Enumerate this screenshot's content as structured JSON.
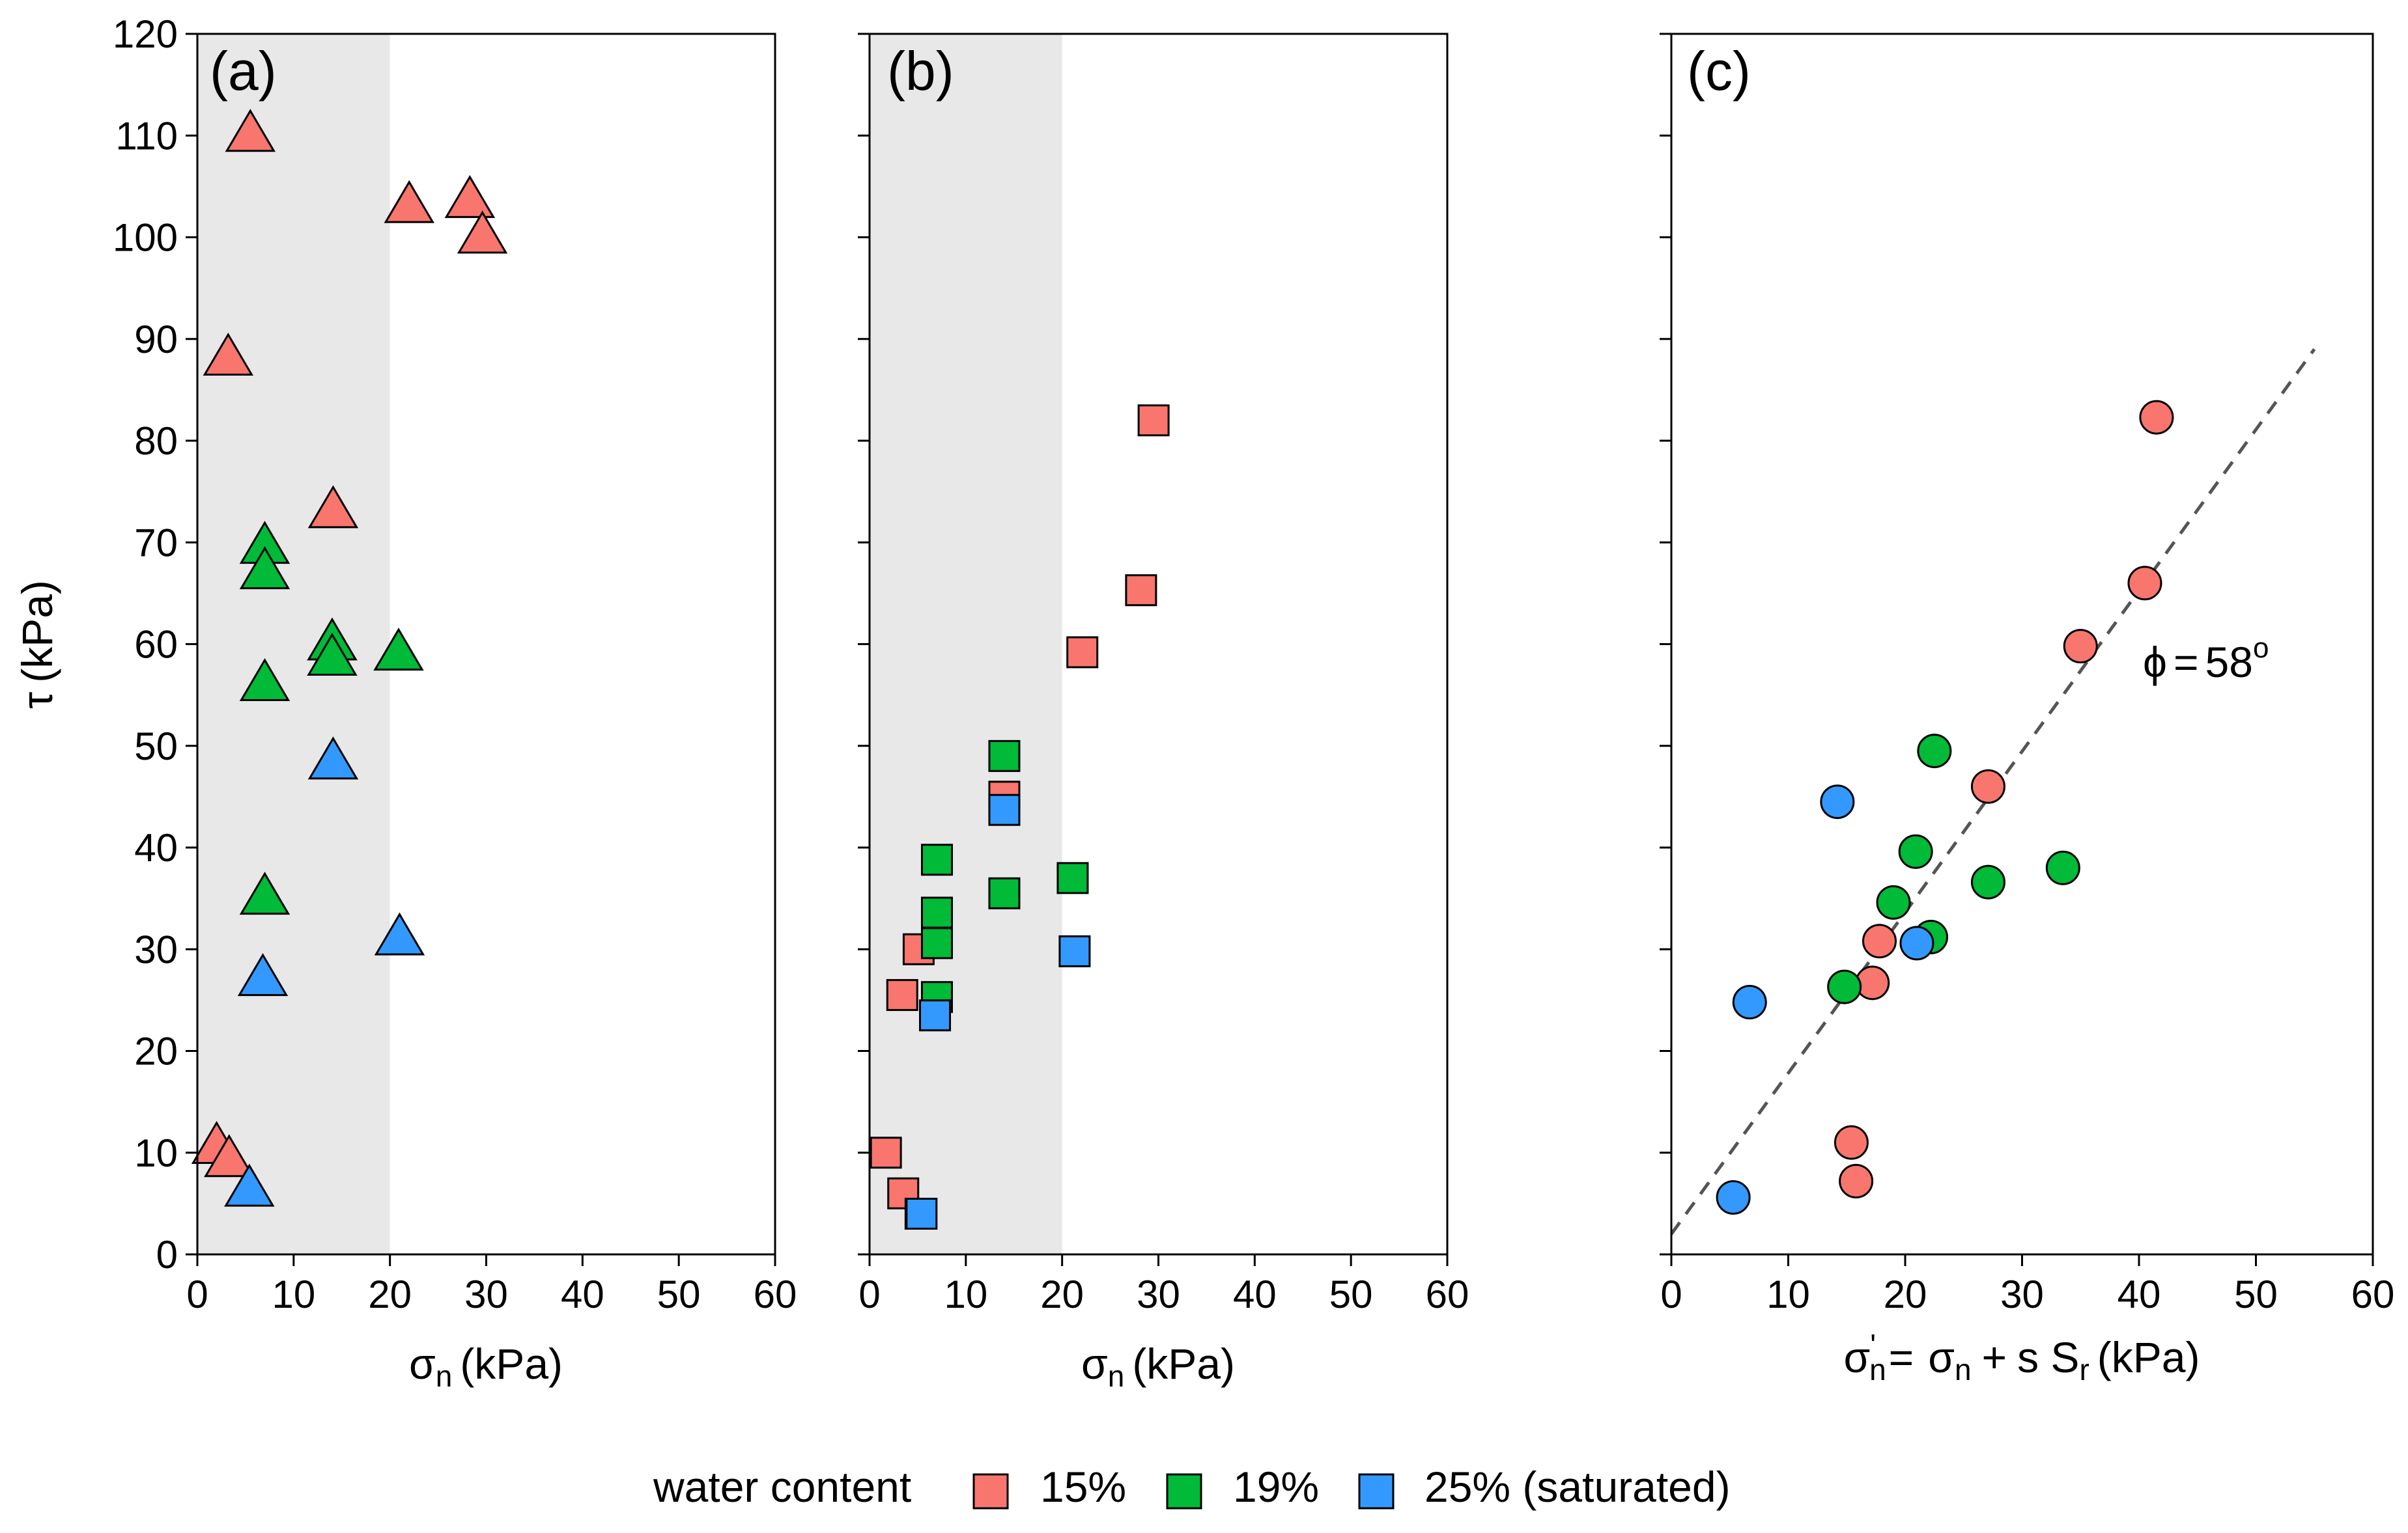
{
  "colors": {
    "w15": "#F8766D",
    "w19": "#00BA38",
    "w25": "#3399FF",
    "shade": "#E8E8E8",
    "fit_line": "#555555"
  },
  "legend": {
    "title": "water content",
    "entries": [
      {
        "key": "w15",
        "label": "15%"
      },
      {
        "key": "w19",
        "label": "19%"
      },
      {
        "key": "w25",
        "label": "25% (saturated)"
      }
    ]
  },
  "y_axis": {
    "sym": "τ",
    "unit": "(kPa)",
    "ticks": [
      "0",
      "10",
      "20",
      "30",
      "40",
      "50",
      "60",
      "70",
      "80",
      "90",
      "100",
      "110",
      "120"
    ]
  },
  "chart_data": [
    {
      "panel": "(a)",
      "type": "scatter",
      "marker": "triangle",
      "xlim": [
        0,
        60
      ],
      "ylim": [
        0,
        120
      ],
      "x_ticks": [
        "0",
        "10",
        "20",
        "30",
        "40",
        "50",
        "60"
      ],
      "shaded_x_range": [
        0,
        20
      ],
      "xlabel": {
        "sym": "σ",
        "sub": "n",
        "unit": "(kPa)"
      },
      "series": [
        {
          "key": "w15",
          "points": [
            [
              5.5,
              110
            ],
            [
              22,
              103
            ],
            [
              28.3,
              103.5
            ],
            [
              29.6,
              100
            ],
            [
              3.2,
              88
            ],
            [
              14.1,
              73
            ],
            [
              2,
              10.5
            ],
            [
              3.3,
              9.2
            ]
          ]
        },
        {
          "key": "w19",
          "points": [
            [
              7,
              69.5
            ],
            [
              7,
              67
            ],
            [
              14,
              60
            ],
            [
              14,
              58.5
            ],
            [
              20.9,
              59
            ],
            [
              7,
              56
            ],
            [
              7,
              35
            ]
          ]
        },
        {
          "key": "w25",
          "points": [
            [
              14.1,
              48.3
            ],
            [
              21,
              31
            ],
            [
              6.8,
              27
            ],
            [
              5.4,
              6.3
            ]
          ]
        }
      ]
    },
    {
      "panel": "(b)",
      "type": "scatter",
      "marker": "square",
      "xlim": [
        0,
        60
      ],
      "ylim": [
        0,
        120
      ],
      "x_ticks": [
        "0",
        "10",
        "20",
        "30",
        "40",
        "50",
        "60"
      ],
      "shaded_x_range": [
        0,
        20
      ],
      "xlabel": {
        "sym": "σ",
        "sub": "n",
        "unit": "(kPa)"
      },
      "series": [
        {
          "key": "w15",
          "points": [
            [
              29.5,
              82
            ],
            [
              28.2,
              65.3
            ],
            [
              22.1,
              59.2
            ],
            [
              14,
              45
            ],
            [
              5.1,
              30
            ],
            [
              3.4,
              25.5
            ],
            [
              1.7,
              10
            ],
            [
              3.5,
              6
            ],
            [
              5.3,
              4
            ]
          ]
        },
        {
          "key": "w19",
          "points": [
            [
              14,
              49
            ],
            [
              7,
              38.8
            ],
            [
              7,
              33.6
            ],
            [
              7,
              30.6
            ],
            [
              7,
              25.3
            ],
            [
              14,
              35.5
            ],
            [
              21.1,
              37
            ]
          ]
        },
        {
          "key": "w25",
          "points": [
            [
              14,
              43.7
            ],
            [
              21.3,
              29.8
            ],
            [
              6.8,
              23.5
            ],
            [
              5.4,
              4
            ]
          ]
        }
      ]
    },
    {
      "panel": "(c)",
      "type": "scatter",
      "marker": "circle",
      "xlim": [
        0,
        60
      ],
      "ylim": [
        0,
        120
      ],
      "x_ticks": [
        "0",
        "10",
        "20",
        "30",
        "40",
        "50",
        "60"
      ],
      "xlabel": {
        "lhs": "σ",
        "prime": "'",
        "lhs_sub": "n",
        "eq": "=",
        "r1": "σ",
        "r1_sub": "n",
        "plus": "+",
        "r2": "s S",
        "r2_sub": "r",
        "unit": "(kPa)"
      },
      "fit_line": {
        "x": [
          0,
          55
        ],
        "y": [
          2,
          89
        ],
        "style": "dashed"
      },
      "annotation": {
        "sym": "ϕ",
        "eq": "=",
        "value": "58",
        "sup": "o"
      },
      "series": [
        {
          "key": "w15",
          "points": [
            [
              41.5,
              82.3
            ],
            [
              40.5,
              66
            ],
            [
              35,
              59.8
            ],
            [
              27.1,
              46
            ],
            [
              17.8,
              30.8
            ],
            [
              17.2,
              26.7
            ],
            [
              15.4,
              11
            ],
            [
              15.8,
              7.2
            ]
          ]
        },
        {
          "key": "w19",
          "points": [
            [
              22.5,
              49.5
            ],
            [
              20.9,
              39.6
            ],
            [
              19,
              34.6
            ],
            [
              22.2,
              31.2
            ],
            [
              14.8,
              26.3
            ],
            [
              27.1,
              36.6
            ],
            [
              33.5,
              38
            ]
          ]
        },
        {
          "key": "w25",
          "points": [
            [
              14.2,
              44.5
            ],
            [
              21,
              30.6
            ],
            [
              6.7,
              24.8
            ],
            [
              5.3,
              5.6
            ]
          ]
        }
      ]
    }
  ]
}
